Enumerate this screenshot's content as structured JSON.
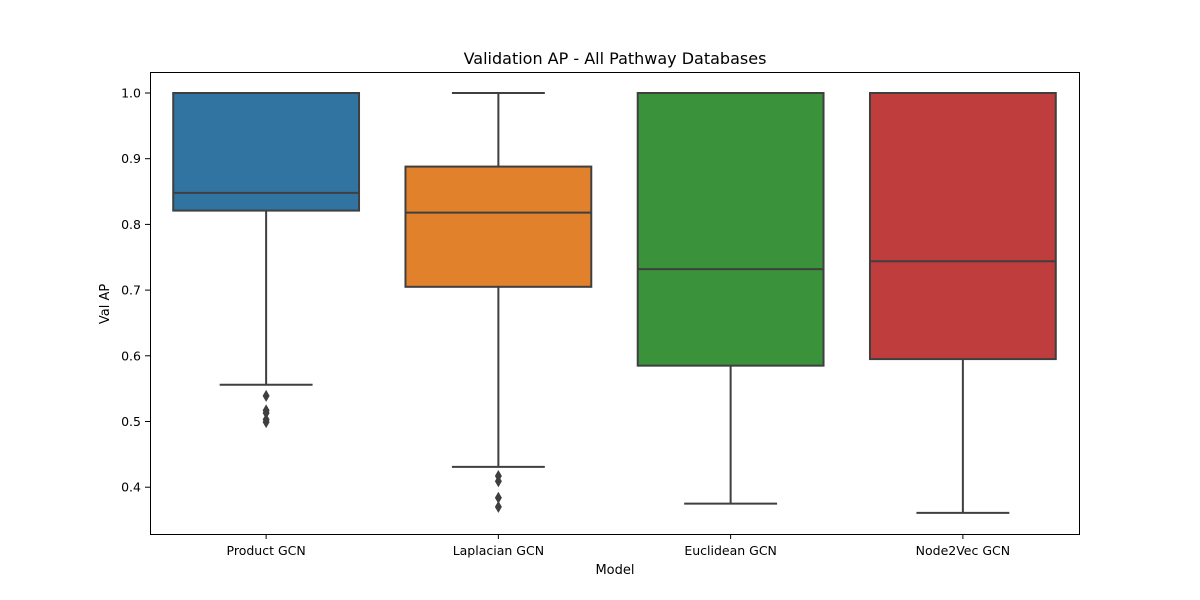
{
  "chart_data": {
    "type": "box",
    "title": "Validation AP - All Pathway Databases",
    "xlabel": "Model",
    "ylabel": "Val AP",
    "ylim": [
      0.33,
      1.03
    ],
    "yticks": [
      "0.4",
      "0.5",
      "0.6",
      "0.7",
      "0.8",
      "0.9",
      "1.0"
    ],
    "grid": false,
    "legend": "none",
    "categories": [
      "Product GCN",
      "Laplacian GCN",
      "Euclidean GCN",
      "Node2Vec GCN"
    ],
    "series": [
      {
        "category": "Product GCN",
        "color": "#3274a1",
        "whisker_low": 0.556,
        "q1": 0.821,
        "median": 0.848,
        "q3": 1.0,
        "whisker_high": 1.0,
        "outliers": [
          0.539,
          0.517,
          0.513,
          0.503,
          0.499
        ]
      },
      {
        "category": "Laplacian GCN",
        "color": "#e1812c",
        "whisker_low": 0.431,
        "q1": 0.705,
        "median": 0.818,
        "q3": 0.888,
        "whisker_high": 1.0,
        "outliers": [
          0.417,
          0.409,
          0.384,
          0.37
        ]
      },
      {
        "category": "Euclidean GCN",
        "color": "#3a923a",
        "whisker_low": 0.375,
        "q1": 0.585,
        "median": 0.732,
        "q3": 1.0,
        "whisker_high": 1.0,
        "outliers": []
      },
      {
        "category": "Node2Vec GCN",
        "color": "#c03d3e",
        "whisker_low": 0.361,
        "q1": 0.595,
        "median": 0.744,
        "q3": 1.0,
        "whisker_high": 1.0,
        "outliers": []
      }
    ]
  }
}
